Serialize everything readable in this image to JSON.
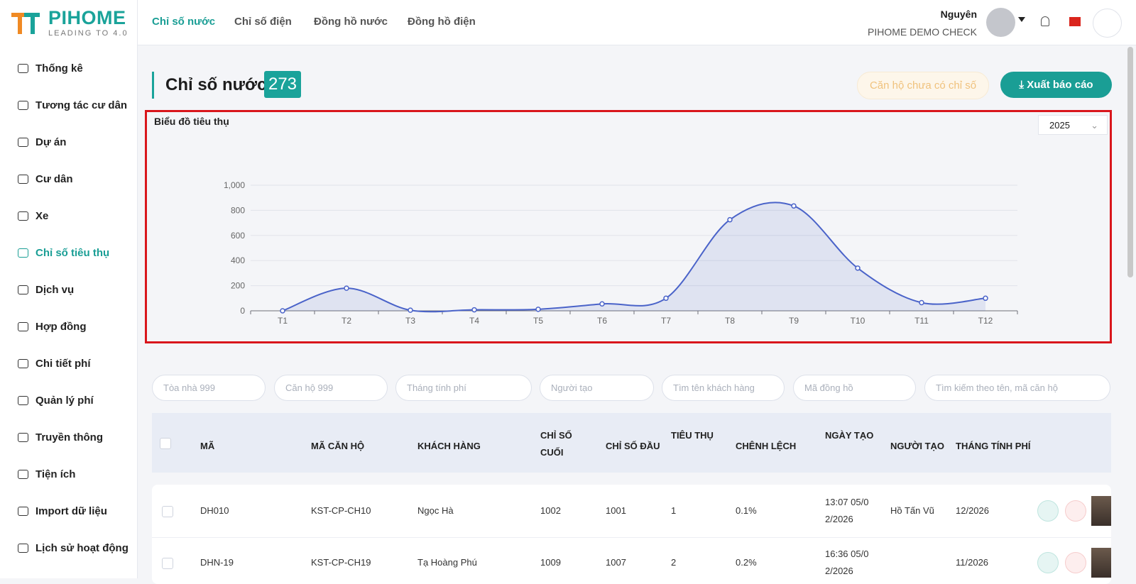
{
  "logo": {
    "brand": "PIHOME",
    "tagline": "LEADING TO 4.0"
  },
  "top_nav": [
    "Chỉ số nước",
    "Chỉ số điện",
    "Đồng hồ nước",
    "Đồng hồ điện"
  ],
  "user": {
    "name": "Nguyên",
    "org": "PIHOME DEMO CHECK"
  },
  "sidebar": [
    "Thống kê",
    "Tương tác cư dân",
    "Dự án",
    "Cư dân",
    "Xe",
    "Chỉ số tiêu thụ",
    "Dịch vụ",
    "Hợp đồng",
    "Chi tiết phí",
    "Quản lý phí",
    "Truyền thông",
    "Tiện ích",
    "Import dữ liệu",
    "Lịch sử hoạt động"
  ],
  "page": {
    "title": "Chỉ số nước",
    "count": 273,
    "btn_pending": "Căn hộ chưa có chỉ số",
    "btn_export": "Xuất báo cáo"
  },
  "chart_data": {
    "type": "line",
    "title": "Biểu đồ tiêu thụ",
    "year": "2025",
    "categories": [
      "T1",
      "T2",
      "T3",
      "T4",
      "T5",
      "T6",
      "T7",
      "T8",
      "T9",
      "T10",
      "T11",
      "T12"
    ],
    "values": [
      0,
      180,
      5,
      8,
      12,
      55,
      100,
      725,
      835,
      340,
      65,
      100
    ],
    "color": "#4a63c9",
    "ylim": [
      0,
      1000
    ],
    "yticks": [
      0,
      200,
      400,
      600,
      800,
      {
        "value": 1000,
        "label": "1,000"
      }
    ],
    "grid": true
  },
  "filters": [
    "Tòa nhà 999",
    "Căn hộ 999",
    "Tháng tính phí",
    "Người tạo",
    "Tìm tên khách hàng",
    "Mã đồng hồ",
    "Tìm kiếm theo tên, mã căn hộ"
  ],
  "table": {
    "headers": [
      "MÃ",
      "MÃ CĂN HỘ",
      "KHÁCH HÀNG",
      "CHỈ SỐ CUỐI",
      "CHỈ SỐ ĐẦU",
      "TIÊU THỤ",
      "CHÊNH LỆCH",
      "NGÀY TẠO",
      "NGƯỜI TẠO",
      "THÁNG TÍNH PHÍ"
    ],
    "rows": [
      {
        "code": "DH010",
        "apartment": "KST-CP-CH10",
        "customer": "Ngọc Hà",
        "last": "1002",
        "first": "1001",
        "usage": "1",
        "diff": "0.1%",
        "created": "13:07 05/02/2026",
        "creator": "Hồ Tấn Vũ",
        "month": "12/2026"
      },
      {
        "code": "DHN-19",
        "apartment": "KST-CP-CH19",
        "customer": "Tạ Hoàng Phú",
        "last": "1009",
        "first": "1007",
        "usage": "2",
        "diff": "0.2%",
        "created": "16:36 05/02/2026",
        "month": "11/2026"
      }
    ]
  }
}
